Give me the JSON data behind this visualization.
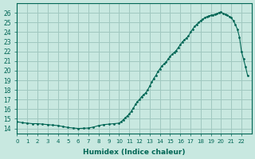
{
  "title": "",
  "xlabel": "Humidex (Indice chaleur)",
  "ylabel": "",
  "bg_color": "#c8e8e0",
  "grid_color": "#a0c8c0",
  "line_color": "#006655",
  "xlim": [
    0,
    23
  ],
  "ylim": [
    13.5,
    27
  ],
  "yticks": [
    14,
    15,
    16,
    17,
    18,
    19,
    20,
    21,
    22,
    23,
    24,
    25,
    26
  ],
  "xticks": [
    0,
    1,
    2,
    3,
    4,
    5,
    6,
    7,
    8,
    9,
    10,
    11,
    12,
    13,
    14,
    15,
    16,
    17,
    18,
    19,
    20,
    21,
    22
  ],
  "x": [
    0.0,
    0.5,
    1.0,
    1.5,
    2.0,
    2.5,
    3.0,
    3.5,
    4.0,
    4.5,
    5.0,
    5.5,
    6.0,
    6.5,
    7.0,
    7.5,
    8.0,
    8.5,
    9.0,
    9.5,
    10.0,
    10.2,
    10.4,
    10.6,
    10.8,
    11.0,
    11.2,
    11.4,
    11.6,
    11.8,
    12.0,
    12.2,
    12.4,
    12.6,
    12.8,
    13.0,
    13.2,
    13.4,
    13.6,
    13.8,
    14.0,
    14.2,
    14.4,
    14.6,
    14.8,
    15.0,
    15.2,
    15.4,
    15.6,
    15.8,
    16.0,
    16.2,
    16.4,
    16.6,
    16.8,
    17.0,
    17.2,
    17.4,
    17.6,
    17.8,
    18.0,
    18.2,
    18.4,
    18.6,
    18.8,
    19.0,
    19.2,
    19.4,
    19.6,
    19.8,
    20.0,
    20.2,
    20.4,
    20.6,
    20.8,
    21.0,
    21.2,
    21.4,
    21.6,
    21.8,
    22.0,
    22.2,
    22.4,
    22.6
  ],
  "y": [
    14.7,
    14.6,
    14.55,
    14.5,
    14.5,
    14.45,
    14.4,
    14.35,
    14.3,
    14.2,
    14.1,
    14.05,
    14.0,
    14.02,
    14.05,
    14.15,
    14.3,
    14.4,
    14.45,
    14.5,
    14.55,
    14.7,
    14.9,
    15.1,
    15.3,
    15.5,
    15.8,
    16.1,
    16.5,
    16.8,
    17.0,
    17.3,
    17.5,
    17.7,
    18.0,
    18.4,
    18.8,
    19.2,
    19.5,
    19.9,
    20.2,
    20.5,
    20.7,
    20.9,
    21.2,
    21.5,
    21.7,
    21.9,
    22.1,
    22.4,
    22.7,
    23.0,
    23.2,
    23.4,
    23.6,
    24.0,
    24.3,
    24.6,
    24.8,
    25.0,
    25.2,
    25.35,
    25.5,
    25.6,
    25.7,
    25.75,
    25.8,
    25.85,
    25.9,
    26.05,
    26.1,
    25.95,
    25.85,
    25.75,
    25.65,
    25.5,
    25.2,
    24.8,
    24.3,
    23.5,
    22.0,
    21.2,
    20.4,
    19.5
  ]
}
